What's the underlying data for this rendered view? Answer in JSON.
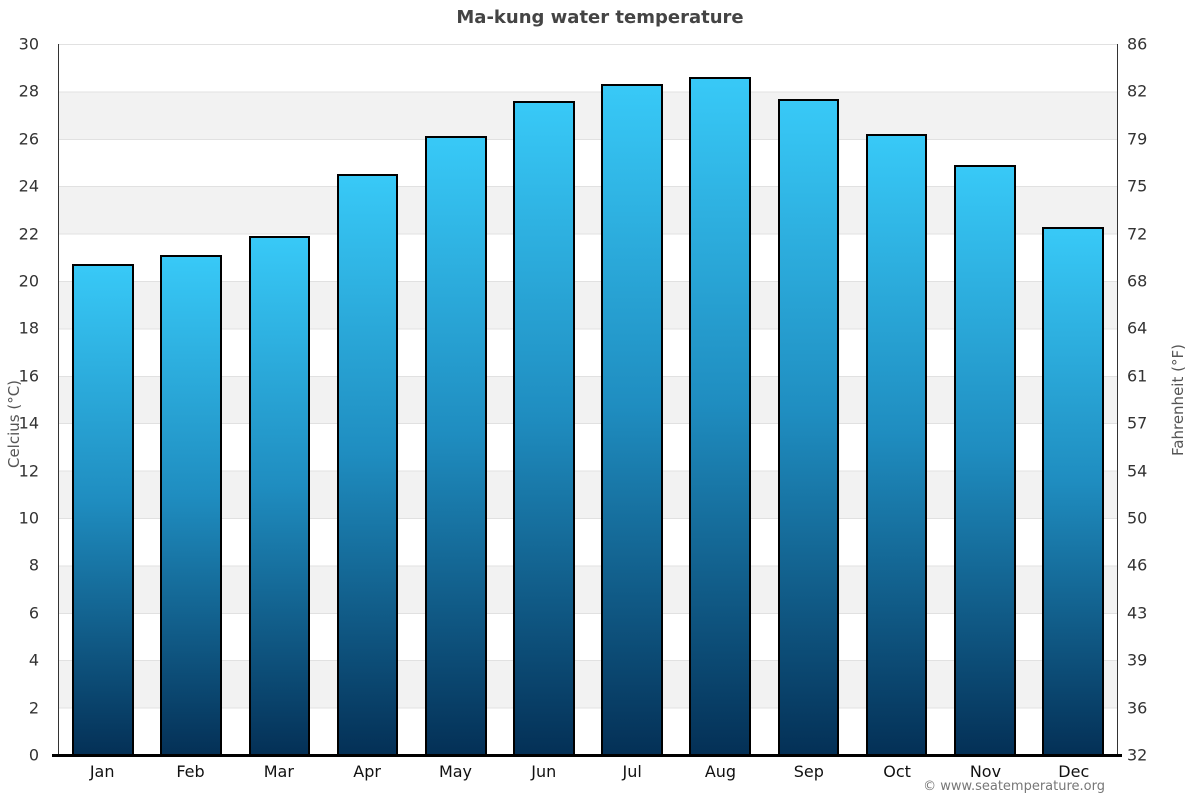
{
  "page": {
    "title": "Ma-kung water temperature",
    "copyright": "© www.seatemperature.org"
  },
  "chart_data": {
    "type": "bar",
    "title": "Ma-kung water temperature",
    "categories": [
      "Jan",
      "Feb",
      "Mar",
      "Apr",
      "May",
      "Jun",
      "Jul",
      "Aug",
      "Sep",
      "Oct",
      "Nov",
      "Dec"
    ],
    "values": [
      20.7,
      21.1,
      21.9,
      24.5,
      26.1,
      27.6,
      28.3,
      28.6,
      27.7,
      26.2,
      24.9,
      22.3
    ],
    "value_unit": "°C",
    "axis_left": {
      "label": "Celcius (°C)",
      "min": 0,
      "max": 30,
      "ticks": [
        30,
        28,
        26,
        24,
        22,
        20,
        18,
        16,
        14,
        12,
        10,
        8,
        6,
        4,
        2,
        0
      ]
    },
    "axis_right": {
      "label": "Fahrenheit (°F)",
      "ticks": [
        86,
        82,
        79,
        75,
        72,
        68,
        64,
        61,
        57,
        54,
        50,
        46,
        43,
        39,
        36,
        32
      ]
    },
    "grid": {
      "horizontal_bands": true,
      "band_step_c": 2,
      "band_color": "#f2f2f2",
      "line_color": "#e1e1e1"
    },
    "bar_style": {
      "gradient_top": "#38c9f7",
      "gradient_mid": "#1f8dc0",
      "gradient_bottom": "#043056",
      "border_color": "#000000"
    },
    "legend": "none"
  }
}
